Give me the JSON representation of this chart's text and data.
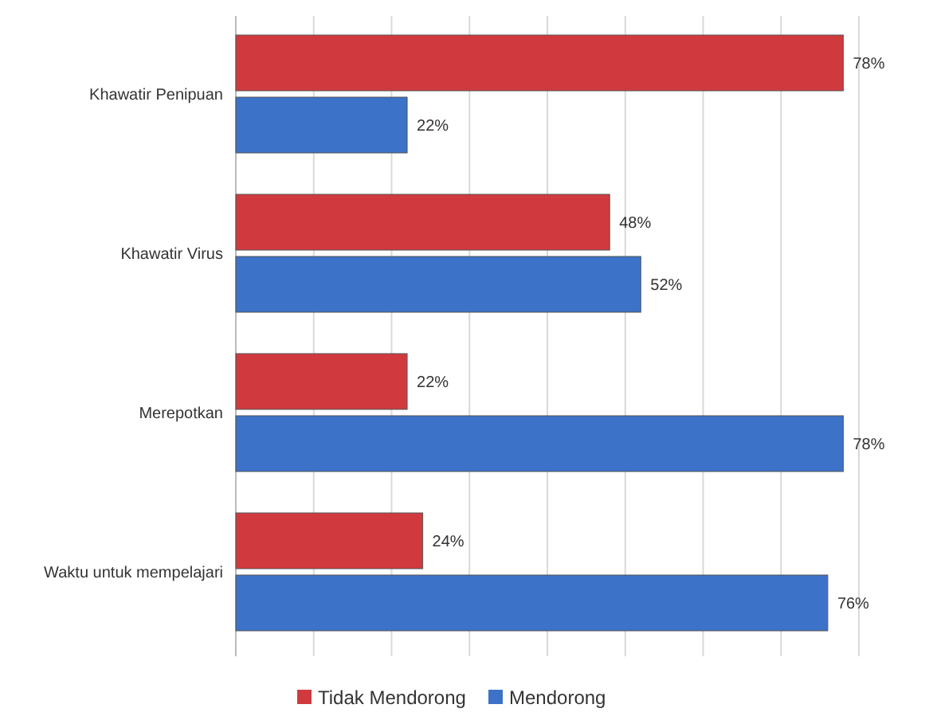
{
  "chart_data": {
    "type": "bar",
    "orientation": "horizontal",
    "categories": [
      "Khawatir Penipuan",
      "Khawatir Virus",
      "Merepotkan",
      "Waktu untuk mempelajari"
    ],
    "series": [
      {
        "name": "Tidak Mendorong",
        "color": "#d03a3e",
        "values": [
          78,
          48,
          22,
          24
        ],
        "value_labels": [
          "78%",
          "48%",
          "22%",
          "24%"
        ]
      },
      {
        "name": "Mendorong",
        "color": "#3c72c8",
        "values": [
          22,
          52,
          78,
          76
        ],
        "value_labels": [
          "22%",
          "52%",
          "78%",
          "76%"
        ]
      }
    ],
    "tick_labels": "y",
    "grid": "x",
    "legend": "bottom"
  }
}
